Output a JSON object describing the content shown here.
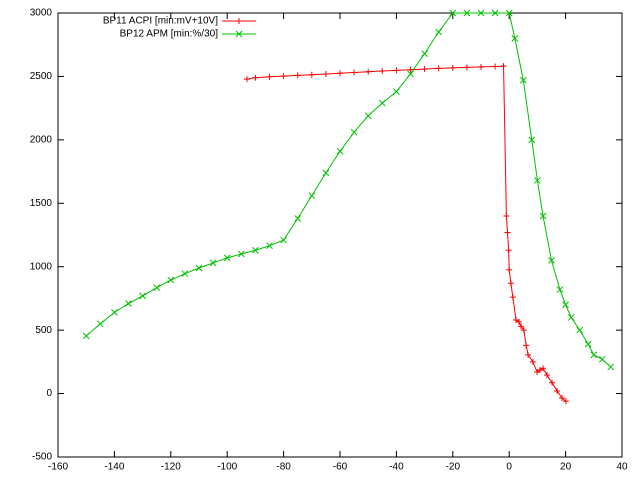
{
  "chart_data": {
    "type": "line",
    "xlim": [
      -160,
      40
    ],
    "xticks": [
      -160,
      -140,
      -120,
      -100,
      -80,
      -60,
      -40,
      -20,
      0,
      20,
      40
    ],
    "ylim": [
      -500,
      3000
    ],
    "yticks": [
      -500,
      0,
      500,
      1000,
      1500,
      2000,
      2500,
      3000
    ],
    "legend": "top-left",
    "series": [
      {
        "name": "BP11 ACPI [min:mV+10V]",
        "color": "#ff0000",
        "marker": "+",
        "x": [
          -93,
          -90,
          -85,
          -80,
          -75,
          -70,
          -65,
          -60,
          -55,
          -50,
          -45,
          -40,
          -35,
          -30,
          -25,
          -20,
          -15,
          -10,
          -5,
          -2,
          -1,
          -0.6,
          -0.2,
          0,
          0.6,
          1.3,
          2.4,
          3.5,
          4.2,
          5.2,
          6,
          6.7,
          8.4,
          9.9,
          10.9,
          12,
          13.4,
          15.2,
          17,
          18.7,
          20.1
        ],
        "values": [
          2479,
          2490,
          2497,
          2502,
          2508,
          2513,
          2519,
          2525,
          2531,
          2537,
          2543,
          2548,
          2553,
          2558,
          2563,
          2567,
          2571,
          2575,
          2578,
          2581,
          1400,
          1270,
          1130,
          975,
          870,
          760,
          580,
          565,
          530,
          500,
          380,
          305,
          250,
          170,
          185,
          200,
          145,
          85,
          20,
          -35,
          -60
        ]
      },
      {
        "name": "BP12 APM [min:%/30]",
        "color": "#00c000",
        "marker": "x",
        "x": [
          -150,
          -145,
          -140,
          -135,
          -130,
          -125,
          -120,
          -115,
          -110,
          -105,
          -100,
          -95,
          -90,
          -85,
          -80,
          -75,
          -70,
          -65,
          -60,
          -55,
          -50,
          -45,
          -40,
          -35,
          -30,
          -25,
          -20,
          -15,
          -10,
          -5,
          0,
          2,
          5,
          8,
          10,
          12,
          15,
          18,
          20,
          22,
          25,
          28,
          30,
          33,
          36
        ],
        "values": [
          455,
          550,
          640,
          710,
          770,
          835,
          895,
          945,
          990,
          1030,
          1070,
          1100,
          1130,
          1165,
          1210,
          1380,
          1560,
          1740,
          1910,
          2060,
          2190,
          2290,
          2380,
          2520,
          2680,
          2850,
          3000,
          3000,
          3000,
          3000,
          3000,
          2800,
          2470,
          2000,
          1680,
          1400,
          1050,
          820,
          700,
          600,
          500,
          390,
          305,
          270,
          210
        ]
      }
    ]
  }
}
